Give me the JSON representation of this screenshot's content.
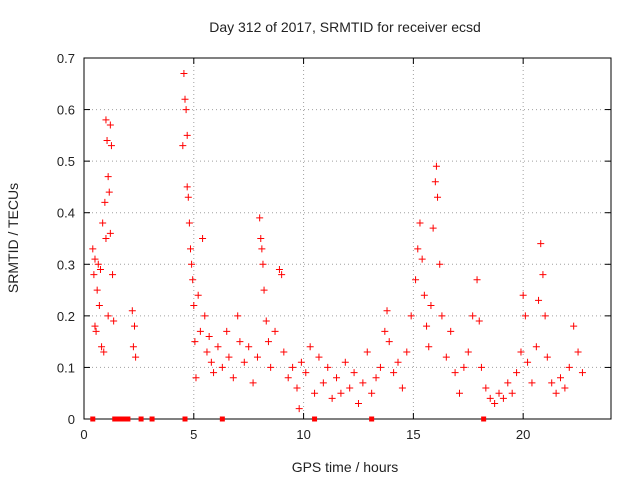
{
  "chart_data": {
    "type": "scatter",
    "title": "Day 312 of 2017, SRMTID for receiver ecsd",
    "xlabel": "GPS time / hours",
    "ylabel": "SRMTID / TECUs",
    "xlim": [
      0,
      24
    ],
    "ylim": [
      0,
      0.7
    ],
    "xticks": [
      0,
      5,
      10,
      15,
      20
    ],
    "yticks": [
      0,
      0.1,
      0.2,
      0.3,
      0.4,
      0.5,
      0.6,
      0.7
    ],
    "grid": true,
    "marker": "+",
    "color": "#ff0000",
    "series": [
      {
        "name": "SRMTID",
        "points": [
          [
            0.4,
            0.33
          ],
          [
            0.45,
            0.28
          ],
          [
            0.5,
            0.31
          ],
          [
            0.5,
            0.18
          ],
          [
            0.55,
            0.17
          ],
          [
            0.6,
            0.25
          ],
          [
            0.65,
            0.3
          ],
          [
            0.7,
            0.22
          ],
          [
            0.75,
            0.29
          ],
          [
            0.8,
            0.14
          ],
          [
            0.85,
            0.38
          ],
          [
            0.9,
            0.13
          ],
          [
            0.95,
            0.42
          ],
          [
            1.0,
            0.58
          ],
          [
            1.0,
            0.35
          ],
          [
            1.05,
            0.54
          ],
          [
            1.1,
            0.47
          ],
          [
            1.1,
            0.2
          ],
          [
            1.15,
            0.44
          ],
          [
            1.2,
            0.57
          ],
          [
            1.2,
            0.36
          ],
          [
            1.25,
            0.53
          ],
          [
            1.3,
            0.28
          ],
          [
            1.35,
            0.19
          ],
          [
            2.2,
            0.21
          ],
          [
            2.25,
            0.14
          ],
          [
            2.3,
            0.18
          ],
          [
            2.35,
            0.12
          ],
          [
            4.5,
            0.53
          ],
          [
            4.55,
            0.67
          ],
          [
            4.6,
            0.62
          ],
          [
            4.65,
            0.6
          ],
          [
            4.7,
            0.55
          ],
          [
            4.7,
            0.45
          ],
          [
            4.75,
            0.43
          ],
          [
            4.8,
            0.38
          ],
          [
            4.85,
            0.33
          ],
          [
            4.9,
            0.3
          ],
          [
            4.95,
            0.27
          ],
          [
            5.0,
            0.22
          ],
          [
            5.05,
            0.15
          ],
          [
            5.1,
            0.08
          ],
          [
            5.2,
            0.24
          ],
          [
            5.3,
            0.17
          ],
          [
            5.4,
            0.35
          ],
          [
            5.5,
            0.2
          ],
          [
            5.6,
            0.13
          ],
          [
            5.7,
            0.16
          ],
          [
            5.8,
            0.11
          ],
          [
            5.9,
            0.09
          ],
          [
            6.1,
            0.14
          ],
          [
            6.3,
            0.1
          ],
          [
            6.5,
            0.17
          ],
          [
            6.6,
            0.12
          ],
          [
            6.8,
            0.08
          ],
          [
            7.0,
            0.2
          ],
          [
            7.1,
            0.15
          ],
          [
            7.3,
            0.11
          ],
          [
            7.5,
            0.14
          ],
          [
            7.7,
            0.07
          ],
          [
            7.9,
            0.12
          ],
          [
            8.0,
            0.39
          ],
          [
            8.05,
            0.35
          ],
          [
            8.1,
            0.33
          ],
          [
            8.15,
            0.3
          ],
          [
            8.2,
            0.25
          ],
          [
            8.3,
            0.19
          ],
          [
            8.4,
            0.15
          ],
          [
            8.5,
            0.1
          ],
          [
            8.7,
            0.17
          ],
          [
            8.9,
            0.29
          ],
          [
            9.0,
            0.28
          ],
          [
            9.1,
            0.13
          ],
          [
            9.3,
            0.08
          ],
          [
            9.5,
            0.1
          ],
          [
            9.7,
            0.06
          ],
          [
            9.8,
            0.02
          ],
          [
            9.9,
            0.11
          ],
          [
            10.1,
            0.09
          ],
          [
            10.3,
            0.14
          ],
          [
            10.5,
            0.05
          ],
          [
            10.7,
            0.12
          ],
          [
            10.9,
            0.07
          ],
          [
            11.1,
            0.1
          ],
          [
            11.3,
            0.04
          ],
          [
            11.5,
            0.08
          ],
          [
            11.7,
            0.05
          ],
          [
            11.9,
            0.11
          ],
          [
            12.1,
            0.06
          ],
          [
            12.3,
            0.09
          ],
          [
            12.5,
            0.03
          ],
          [
            12.7,
            0.07
          ],
          [
            12.9,
            0.13
          ],
          [
            13.1,
            0.05
          ],
          [
            13.3,
            0.08
          ],
          [
            13.5,
            0.1
          ],
          [
            13.7,
            0.17
          ],
          [
            13.8,
            0.21
          ],
          [
            13.9,
            0.15
          ],
          [
            14.1,
            0.09
          ],
          [
            14.3,
            0.11
          ],
          [
            14.5,
            0.06
          ],
          [
            14.7,
            0.13
          ],
          [
            14.9,
            0.2
          ],
          [
            15.1,
            0.27
          ],
          [
            15.2,
            0.33
          ],
          [
            15.3,
            0.38
          ],
          [
            15.4,
            0.31
          ],
          [
            15.5,
            0.24
          ],
          [
            15.6,
            0.18
          ],
          [
            15.7,
            0.14
          ],
          [
            15.8,
            0.22
          ],
          [
            15.9,
            0.37
          ],
          [
            16.0,
            0.46
          ],
          [
            16.05,
            0.49
          ],
          [
            16.1,
            0.43
          ],
          [
            16.2,
            0.3
          ],
          [
            16.3,
            0.2
          ],
          [
            16.5,
            0.12
          ],
          [
            16.7,
            0.17
          ],
          [
            16.9,
            0.09
          ],
          [
            17.1,
            0.05
          ],
          [
            17.3,
            0.1
          ],
          [
            17.5,
            0.13
          ],
          [
            17.7,
            0.2
          ],
          [
            17.9,
            0.27
          ],
          [
            18.0,
            0.19
          ],
          [
            18.1,
            0.1
          ],
          [
            18.3,
            0.06
          ],
          [
            18.5,
            0.04
          ],
          [
            18.7,
            0.03
          ],
          [
            18.9,
            0.05
          ],
          [
            19.1,
            0.04
          ],
          [
            19.3,
            0.07
          ],
          [
            19.5,
            0.05
          ],
          [
            19.7,
            0.09
          ],
          [
            19.9,
            0.13
          ],
          [
            20.0,
            0.24
          ],
          [
            20.1,
            0.2
          ],
          [
            20.2,
            0.11
          ],
          [
            20.4,
            0.07
          ],
          [
            20.6,
            0.14
          ],
          [
            20.7,
            0.23
          ],
          [
            20.8,
            0.34
          ],
          [
            20.9,
            0.28
          ],
          [
            21.0,
            0.2
          ],
          [
            21.1,
            0.12
          ],
          [
            21.3,
            0.07
          ],
          [
            21.5,
            0.05
          ],
          [
            21.7,
            0.08
          ],
          [
            21.9,
            0.06
          ],
          [
            22.1,
            0.1
          ],
          [
            22.3,
            0.18
          ],
          [
            22.5,
            0.13
          ],
          [
            22.7,
            0.09
          ]
        ]
      }
    ],
    "baseline_markers": [
      0.4,
      1.4,
      1.6,
      1.8,
      2.0,
      2.6,
      3.1,
      4.6,
      6.3,
      10.5,
      13.1,
      18.2
    ]
  }
}
